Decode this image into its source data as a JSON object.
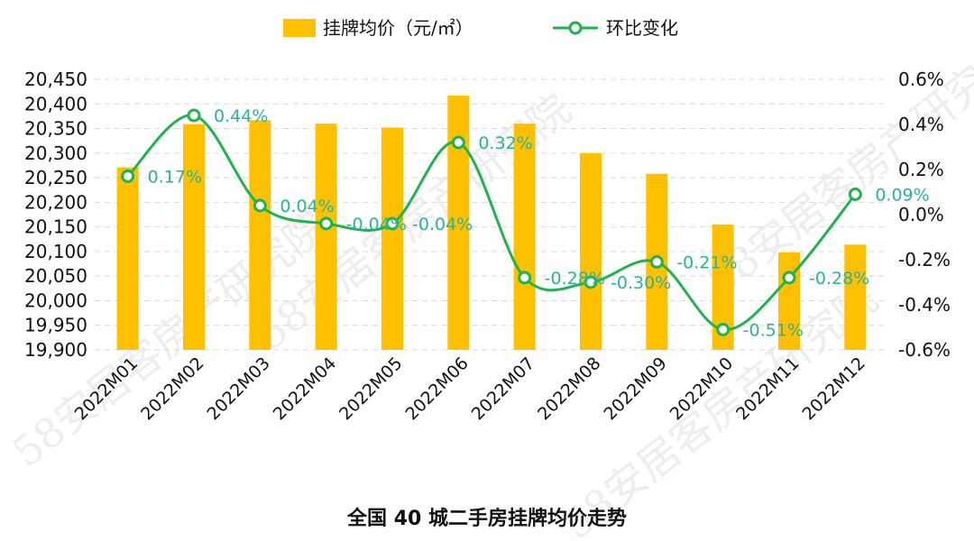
{
  "chart_data": {
    "type": "bar",
    "title": "全国 40 城二手房挂牌均价走势",
    "categories": [
      "2022M01",
      "2022M02",
      "2022M03",
      "2022M04",
      "2022M05",
      "2022M06",
      "2022M07",
      "2022M08",
      "2022M09",
      "2022M10",
      "2022M11",
      "2022M12"
    ],
    "series": [
      {
        "name": "挂牌均价（元/㎡）",
        "type": "bar",
        "axis": "left",
        "color": "#ffc000",
        "values": [
          20271,
          20359,
          20367,
          20360,
          20352,
          20417,
          20360,
          20300,
          20258,
          20155,
          20098,
          20114
        ]
      },
      {
        "name": "环比变化",
        "type": "line",
        "axis": "right",
        "color": "#1fb34f",
        "values": [
          0.17,
          0.44,
          0.04,
          -0.04,
          -0.04,
          0.32,
          -0.28,
          -0.3,
          -0.21,
          -0.51,
          -0.28,
          0.09
        ],
        "labels": [
          "0.17%",
          "0.44%",
          "0.04%",
          "-0.04%",
          "-0.04%",
          "0.32%",
          "-0.28%",
          "-0.30%",
          "-0.21%",
          "-0.51%",
          "-0.28%",
          "0.09%"
        ]
      }
    ],
    "y_left": {
      "ylim": [
        19900,
        20450
      ],
      "ticks": [
        "19,900",
        "19,950",
        "20,000",
        "20,050",
        "20,100",
        "20,150",
        "20,200",
        "20,250",
        "20,300",
        "20,350",
        "20,400",
        "20,450"
      ]
    },
    "y_right": {
      "ylim": [
        -0.6,
        0.6
      ],
      "ticks": [
        "-0.6%",
        "-0.4%",
        "-0.2%",
        "0.0%",
        "0.2%",
        "0.4%",
        "0.6%"
      ]
    },
    "grid": true,
    "legend": "top-center"
  },
  "watermark": {
    "text": "58安居客房产研究院"
  }
}
